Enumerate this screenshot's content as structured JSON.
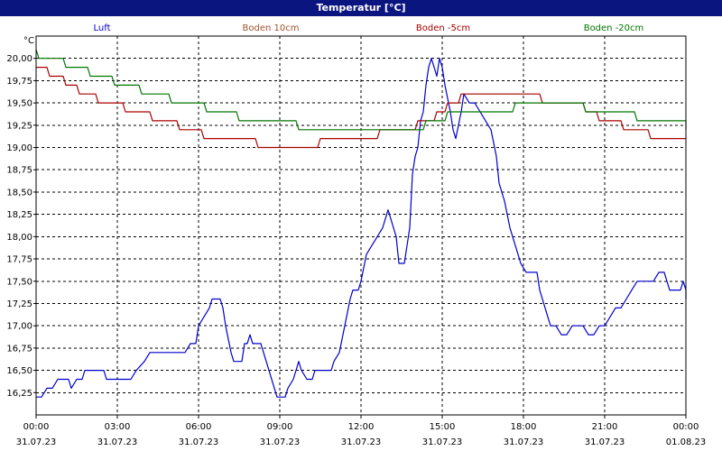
{
  "window": {
    "title": "Temperatur [°C]"
  },
  "chart_data": {
    "type": "line",
    "title": "Temperatur [°C]",
    "ylabel": "°C",
    "ylim": [
      16.0,
      20.25
    ],
    "yticks": [
      20.0,
      19.75,
      19.5,
      19.25,
      19.0,
      18.75,
      18.5,
      18.25,
      18.0,
      17.75,
      17.5,
      17.25,
      17.0,
      16.75,
      16.5,
      16.25
    ],
    "ytick_labels": [
      "20,00",
      "19,75",
      "19,50",
      "19,25",
      "19,00",
      "18,75",
      "18,50",
      "18,25",
      "18,00",
      "17,75",
      "17,50",
      "17,25",
      "17,00",
      "16,75",
      "16,50",
      "16,25"
    ],
    "xlim": [
      0,
      24
    ],
    "xticks": [
      {
        "h": 0,
        "time": "00:00",
        "date": "31.07.23"
      },
      {
        "h": 3,
        "time": "03:00",
        "date": "31.07.23"
      },
      {
        "h": 6,
        "time": "06:00",
        "date": "31.07.23"
      },
      {
        "h": 9,
        "time": "09:00",
        "date": "31.07.23"
      },
      {
        "h": 12,
        "time": "12:00",
        "date": "31.07.23"
      },
      {
        "h": 15,
        "time": "15:00",
        "date": "31.07.23"
      },
      {
        "h": 18,
        "time": "18:00",
        "date": "31.07.23"
      },
      {
        "h": 21,
        "time": "21:00",
        "date": "31.07.23"
      },
      {
        "h": 24,
        "time": "00:00",
        "date": "01.08.23"
      }
    ],
    "grid": true,
    "legend_position": "top",
    "series": [
      {
        "name": "Luft",
        "color": "#0000cc",
        "points": [
          [
            0,
            16.2
          ],
          [
            0.2,
            16.2
          ],
          [
            0.4,
            16.3
          ],
          [
            0.6,
            16.3
          ],
          [
            0.8,
            16.4
          ],
          [
            1.0,
            16.4
          ],
          [
            1.2,
            16.4
          ],
          [
            1.3,
            16.3
          ],
          [
            1.5,
            16.4
          ],
          [
            1.7,
            16.4
          ],
          [
            1.8,
            16.5
          ],
          [
            2.0,
            16.5
          ],
          [
            2.5,
            16.5
          ],
          [
            2.6,
            16.4
          ],
          [
            3.0,
            16.4
          ],
          [
            3.5,
            16.4
          ],
          [
            3.7,
            16.5
          ],
          [
            4.0,
            16.6
          ],
          [
            4.2,
            16.7
          ],
          [
            4.5,
            16.7
          ],
          [
            5.0,
            16.7
          ],
          [
            5.5,
            16.7
          ],
          [
            5.7,
            16.8
          ],
          [
            5.9,
            16.8
          ],
          [
            6.0,
            17.0
          ],
          [
            6.2,
            17.1
          ],
          [
            6.4,
            17.2
          ],
          [
            6.5,
            17.3
          ],
          [
            6.8,
            17.3
          ],
          [
            6.9,
            17.2
          ],
          [
            7.0,
            17.0
          ],
          [
            7.2,
            16.7
          ],
          [
            7.3,
            16.6
          ],
          [
            7.6,
            16.6
          ],
          [
            7.7,
            16.8
          ],
          [
            7.8,
            16.8
          ],
          [
            7.9,
            16.9
          ],
          [
            8.0,
            16.8
          ],
          [
            8.3,
            16.8
          ],
          [
            8.5,
            16.6
          ],
          [
            8.6,
            16.5
          ],
          [
            8.8,
            16.3
          ],
          [
            8.9,
            16.2
          ],
          [
            9.2,
            16.2
          ],
          [
            9.3,
            16.3
          ],
          [
            9.5,
            16.4
          ],
          [
            9.7,
            16.6
          ],
          [
            9.8,
            16.5
          ],
          [
            10.0,
            16.4
          ],
          [
            10.2,
            16.4
          ],
          [
            10.3,
            16.5
          ],
          [
            10.9,
            16.5
          ],
          [
            11.0,
            16.6
          ],
          [
            11.2,
            16.7
          ],
          [
            11.4,
            17.0
          ],
          [
            11.6,
            17.3
          ],
          [
            11.7,
            17.4
          ],
          [
            11.9,
            17.4
          ],
          [
            12.0,
            17.5
          ],
          [
            12.2,
            17.8
          ],
          [
            12.4,
            17.9
          ],
          [
            12.6,
            18.0
          ],
          [
            12.8,
            18.1
          ],
          [
            12.9,
            18.2
          ],
          [
            13.0,
            18.3
          ],
          [
            13.3,
            18.0
          ],
          [
            13.4,
            17.7
          ],
          [
            13.6,
            17.7
          ],
          [
            13.7,
            17.9
          ],
          [
            13.8,
            18.1
          ],
          [
            13.9,
            18.7
          ],
          [
            14.0,
            18.9
          ],
          [
            14.1,
            19.0
          ],
          [
            14.2,
            19.3
          ],
          [
            14.3,
            19.4
          ],
          [
            14.4,
            19.7
          ],
          [
            14.5,
            19.9
          ],
          [
            14.6,
            20.0
          ],
          [
            14.7,
            19.9
          ],
          [
            14.8,
            19.8
          ],
          [
            14.9,
            20.0
          ],
          [
            15.0,
            19.9
          ],
          [
            15.1,
            19.7
          ],
          [
            15.3,
            19.4
          ],
          [
            15.4,
            19.2
          ],
          [
            15.5,
            19.1
          ],
          [
            15.7,
            19.4
          ],
          [
            15.8,
            19.6
          ],
          [
            16.0,
            19.5
          ],
          [
            16.2,
            19.5
          ],
          [
            16.4,
            19.4
          ],
          [
            16.6,
            19.3
          ],
          [
            16.8,
            19.2
          ],
          [
            17.0,
            18.9
          ],
          [
            17.1,
            18.6
          ],
          [
            17.3,
            18.4
          ],
          [
            17.5,
            18.1
          ],
          [
            17.7,
            17.9
          ],
          [
            17.9,
            17.7
          ],
          [
            18.1,
            17.6
          ],
          [
            18.3,
            17.6
          ],
          [
            18.5,
            17.6
          ],
          [
            18.6,
            17.4
          ],
          [
            18.8,
            17.2
          ],
          [
            19.0,
            17.0
          ],
          [
            19.2,
            17.0
          ],
          [
            19.4,
            16.9
          ],
          [
            19.6,
            16.9
          ],
          [
            19.8,
            17.0
          ],
          [
            20.0,
            17.0
          ],
          [
            20.2,
            17.0
          ],
          [
            20.4,
            16.9
          ],
          [
            20.6,
            16.9
          ],
          [
            20.8,
            17.0
          ],
          [
            21.0,
            17.0
          ],
          [
            21.2,
            17.1
          ],
          [
            21.4,
            17.2
          ],
          [
            21.6,
            17.2
          ],
          [
            21.8,
            17.3
          ],
          [
            22.0,
            17.4
          ],
          [
            22.2,
            17.5
          ],
          [
            22.4,
            17.5
          ],
          [
            22.6,
            17.5
          ],
          [
            22.8,
            17.5
          ],
          [
            23.0,
            17.6
          ],
          [
            23.2,
            17.6
          ],
          [
            23.3,
            17.5
          ],
          [
            23.4,
            17.4
          ],
          [
            23.6,
            17.4
          ],
          [
            23.8,
            17.4
          ],
          [
            23.9,
            17.5
          ],
          [
            24.1,
            17.4
          ],
          [
            24.2,
            17.3
          ],
          [
            24.4,
            17.4
          ],
          [
            24.7,
            17.4
          ]
        ]
      },
      {
        "name": "Boden 10cm",
        "color": "#a0522d",
        "points": []
      },
      {
        "name": "Boden -5cm",
        "color": "#aa0000",
        "points": [
          [
            0,
            19.9
          ],
          [
            0.4,
            19.9
          ],
          [
            0.5,
            19.8
          ],
          [
            1.0,
            19.8
          ],
          [
            1.1,
            19.7
          ],
          [
            1.5,
            19.7
          ],
          [
            1.6,
            19.6
          ],
          [
            2.2,
            19.6
          ],
          [
            2.3,
            19.5
          ],
          [
            3.2,
            19.5
          ],
          [
            3.3,
            19.4
          ],
          [
            4.2,
            19.4
          ],
          [
            4.3,
            19.3
          ],
          [
            5.2,
            19.3
          ],
          [
            5.3,
            19.2
          ],
          [
            6.1,
            19.2
          ],
          [
            6.2,
            19.1
          ],
          [
            7.2,
            19.1
          ],
          [
            7.3,
            19.1
          ],
          [
            8.1,
            19.1
          ],
          [
            8.2,
            19.0
          ],
          [
            10.4,
            19.0
          ],
          [
            10.5,
            19.1
          ],
          [
            12.6,
            19.1
          ],
          [
            12.7,
            19.2
          ],
          [
            14.0,
            19.2
          ],
          [
            14.1,
            19.3
          ],
          [
            14.7,
            19.3
          ],
          [
            14.8,
            19.4
          ],
          [
            15.1,
            19.4
          ],
          [
            15.2,
            19.5
          ],
          [
            15.6,
            19.5
          ],
          [
            15.7,
            19.6
          ],
          [
            18.6,
            19.6
          ],
          [
            18.7,
            19.5
          ],
          [
            20.2,
            19.5
          ],
          [
            20.3,
            19.4
          ],
          [
            20.7,
            19.4
          ],
          [
            20.8,
            19.3
          ],
          [
            21.6,
            19.3
          ],
          [
            21.7,
            19.2
          ],
          [
            22.6,
            19.2
          ],
          [
            22.7,
            19.1
          ],
          [
            24.0,
            19.1
          ],
          [
            24.7,
            19.1
          ]
        ]
      },
      {
        "name": "Boden -20cm",
        "color": "#007700",
        "points": [
          [
            0,
            20.1
          ],
          [
            0.1,
            20.0
          ],
          [
            1.0,
            20.0
          ],
          [
            1.1,
            19.9
          ],
          [
            1.9,
            19.9
          ],
          [
            2.0,
            19.8
          ],
          [
            2.8,
            19.8
          ],
          [
            2.9,
            19.7
          ],
          [
            3.8,
            19.7
          ],
          [
            3.9,
            19.6
          ],
          [
            4.9,
            19.6
          ],
          [
            5.0,
            19.5
          ],
          [
            6.2,
            19.5
          ],
          [
            6.3,
            19.4
          ],
          [
            7.4,
            19.4
          ],
          [
            7.5,
            19.3
          ],
          [
            9.6,
            19.3
          ],
          [
            9.7,
            19.2
          ],
          [
            14.3,
            19.2
          ],
          [
            14.4,
            19.3
          ],
          [
            15.1,
            19.3
          ],
          [
            15.2,
            19.4
          ],
          [
            16.3,
            19.4
          ],
          [
            16.4,
            19.4
          ],
          [
            17.6,
            19.4
          ],
          [
            17.7,
            19.5
          ],
          [
            19.8,
            19.5
          ],
          [
            19.9,
            19.5
          ],
          [
            20.2,
            19.5
          ],
          [
            20.3,
            19.4
          ],
          [
            21.6,
            19.4
          ],
          [
            21.7,
            19.4
          ],
          [
            22.1,
            19.4
          ],
          [
            22.2,
            19.3
          ],
          [
            24.5,
            19.3
          ],
          [
            24.7,
            19.2
          ]
        ]
      }
    ]
  }
}
